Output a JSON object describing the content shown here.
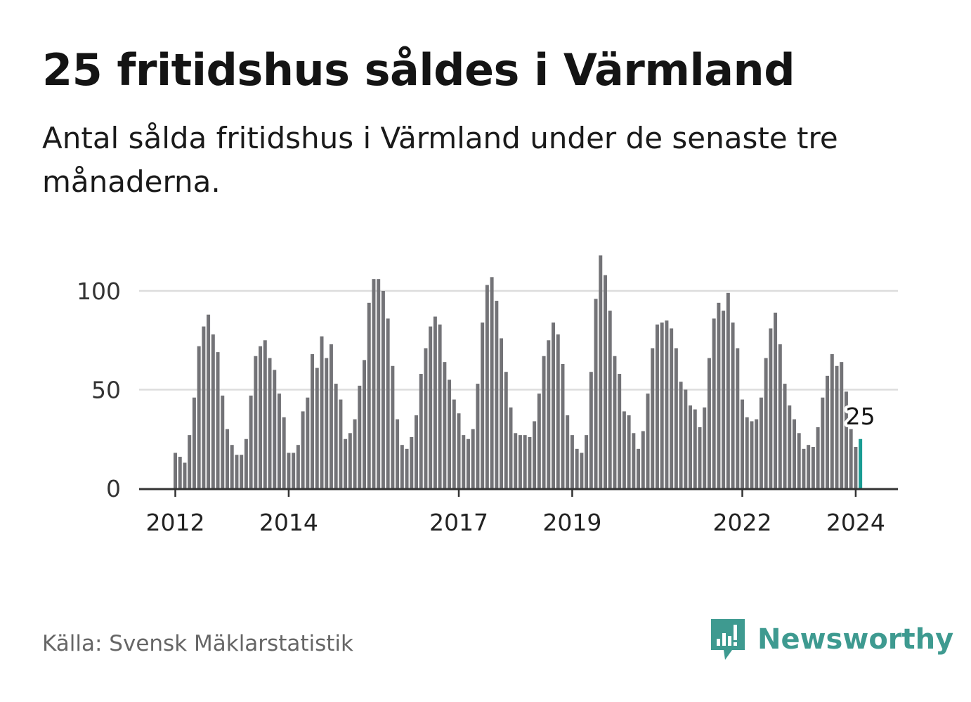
{
  "title": "25 fritidshus såldes i Värmland",
  "subtitle": "Antal sålda fritidshus i Värmland under de senaste tre månaderna.",
  "source": "Källa: Svensk Mäklarstatistik",
  "brand": {
    "name": "Newsworthy",
    "icon": "newsworthy-logo-icon",
    "color": "#3e9a90"
  },
  "colors": {
    "bar": "#737377",
    "highlight": "#1a9c93",
    "grid": "#dddddd",
    "axis": "#333333"
  },
  "chart_data": {
    "type": "bar",
    "title": "25 fritidshus såldes i Värmland",
    "xlabel": "",
    "ylabel": "",
    "ylim": [
      0,
      120
    ],
    "yticks": [
      0,
      50,
      100
    ],
    "x_start": "2012-01",
    "xticks": [
      {
        "label": "2012",
        "index": 0
      },
      {
        "label": "2014",
        "index": 24
      },
      {
        "label": "2017",
        "index": 60
      },
      {
        "label": "2019",
        "index": 84
      },
      {
        "label": "2022",
        "index": 120
      },
      {
        "label": "2024",
        "index": 144
      }
    ],
    "values": [
      18,
      16,
      13,
      27,
      46,
      72,
      82,
      88,
      78,
      69,
      47,
      30,
      22,
      17,
      17,
      25,
      47,
      67,
      72,
      75,
      66,
      60,
      48,
      36,
      18,
      18,
      22,
      39,
      46,
      68,
      61,
      77,
      66,
      73,
      53,
      45,
      25,
      28,
      35,
      52,
      65,
      94,
      106,
      106,
      100,
      86,
      62,
      35,
      22,
      20,
      26,
      37,
      58,
      71,
      82,
      87,
      83,
      64,
      55,
      45,
      38,
      27,
      25,
      30,
      53,
      84,
      103,
      107,
      95,
      76,
      59,
      41,
      28,
      27,
      27,
      26,
      34,
      48,
      67,
      75,
      84,
      78,
      63,
      37,
      27,
      20,
      18,
      27,
      59,
      96,
      118,
      108,
      90,
      67,
      58,
      39,
      37,
      28,
      20,
      29,
      48,
      71,
      83,
      84,
      85,
      81,
      71,
      54,
      50,
      42,
      40,
      31,
      41,
      66,
      86,
      94,
      90,
      99,
      84,
      71,
      45,
      36,
      34,
      35,
      46,
      66,
      81,
      89,
      73,
      53,
      42,
      35,
      28,
      20,
      22,
      21,
      31,
      46,
      57,
      68,
      62,
      64,
      49,
      30,
      21,
      25
    ],
    "highlight_index": 145,
    "highlight_label": "25"
  }
}
